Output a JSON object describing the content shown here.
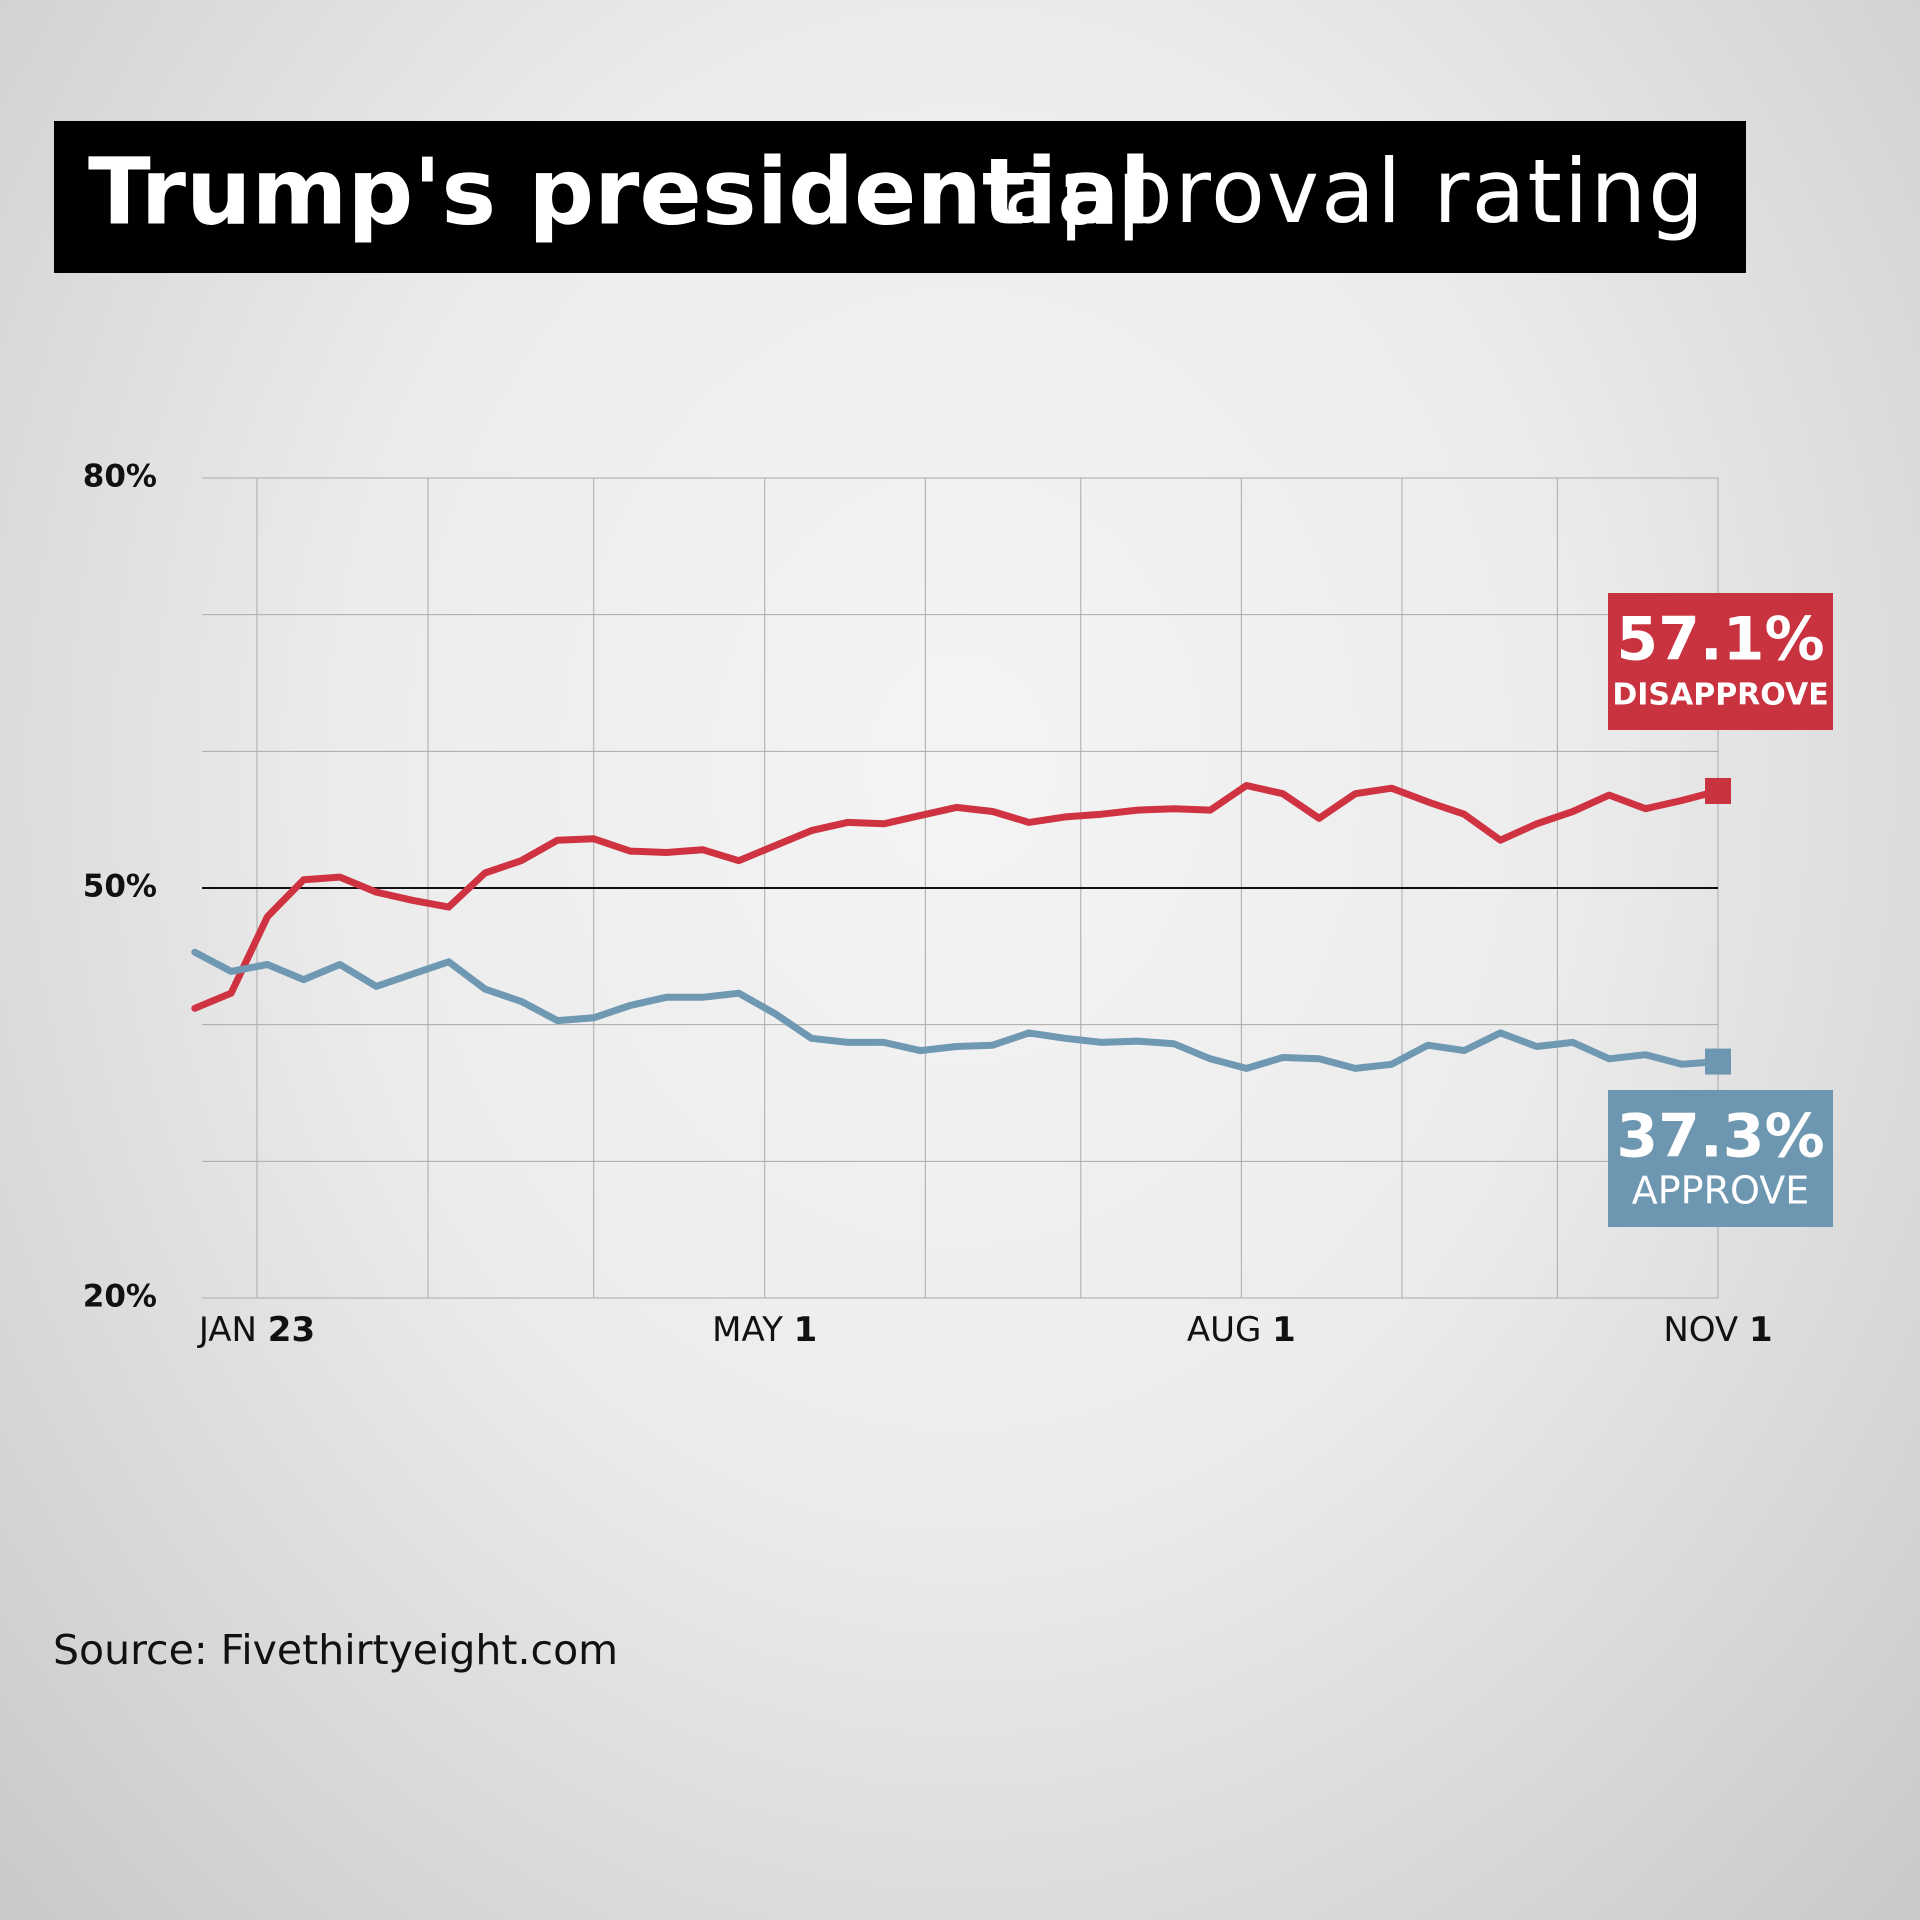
{
  "chart_data": {
    "type": "line",
    "title_bold": "Trump's presidential",
    "title_light": "approval rating",
    "source": "Source: Fivethirtyeight.com",
    "x": [
      "01-11",
      "01-18",
      "01-25",
      "02-01",
      "02-08",
      "02-15",
      "02-22",
      "03-01",
      "03-08",
      "03-15",
      "03-22",
      "03-29",
      "04-05",
      "04-12",
      "04-19",
      "04-26",
      "05-03",
      "05-10",
      "05-17",
      "05-24",
      "05-31",
      "06-07",
      "06-14",
      "06-21",
      "06-28",
      "07-05",
      "07-12",
      "07-19",
      "07-26",
      "08-02",
      "08-09",
      "08-16",
      "08-23",
      "08-30",
      "09-06",
      "09-13",
      "09-20",
      "09-27",
      "10-04",
      "10-11",
      "10-18",
      "10-25",
      "11-01"
    ],
    "series": [
      {
        "name": "DISAPPROVE",
        "color": "#cf3341",
        "box_color": "#c9323f",
        "last_label": "57.1%",
        "values": [
          41.2,
          42.3,
          47.9,
          50.6,
          50.8,
          49.7,
          49.1,
          48.6,
          51.1,
          52.0,
          53.5,
          53.6,
          52.7,
          52.6,
          52.8,
          52.0,
          53.1,
          54.2,
          54.8,
          54.7,
          55.3,
          55.9,
          55.6,
          54.8,
          55.2,
          55.4,
          55.7,
          55.8,
          55.7,
          57.5,
          56.9,
          55.1,
          56.9,
          57.3,
          56.3,
          55.4,
          53.5,
          54.7,
          55.6,
          56.8,
          55.8,
          56.4,
          57.1
        ]
      },
      {
        "name": "APPROVE",
        "color": "#6f98b3",
        "box_color": "#6d96b1",
        "last_label": "37.3%",
        "values": [
          45.3,
          43.9,
          44.4,
          43.3,
          44.4,
          42.8,
          43.7,
          44.6,
          42.6,
          41.7,
          40.3,
          40.5,
          41.4,
          42.0,
          42.0,
          42.3,
          40.8,
          39.0,
          38.7,
          38.7,
          38.1,
          38.4,
          38.5,
          39.4,
          39.0,
          38.7,
          38.8,
          38.6,
          37.5,
          36.8,
          37.6,
          37.5,
          36.8,
          37.1,
          38.5,
          38.1,
          39.4,
          38.4,
          38.7,
          37.5,
          37.8,
          37.1,
          37.3
        ]
      }
    ],
    "xlim": [
      "01-23",
      "11-01"
    ],
    "xticks": [
      {
        "value": "01-23",
        "month": "JAN",
        "day": "23"
      },
      {
        "value": "05-01",
        "month": "MAY",
        "day": "1"
      },
      {
        "value": "08-01",
        "month": "AUG",
        "day": "1"
      },
      {
        "value": "11-01",
        "month": "NOV",
        "day": "1"
      }
    ],
    "xgrid": [
      "01-23",
      "02-25",
      "03-29",
      "05-01",
      "06-01",
      "07-01",
      "08-01",
      "09-01",
      "10-01",
      "11-01"
    ],
    "ylim": [
      20,
      80
    ],
    "yticks": [
      {
        "value": 80,
        "label": "80%"
      },
      {
        "value": 50,
        "label": "50%"
      },
      {
        "value": 20,
        "label": "20%"
      }
    ],
    "ygrid": [
      80,
      70,
      60,
      50,
      40,
      30,
      20
    ],
    "reference_line": 50
  }
}
